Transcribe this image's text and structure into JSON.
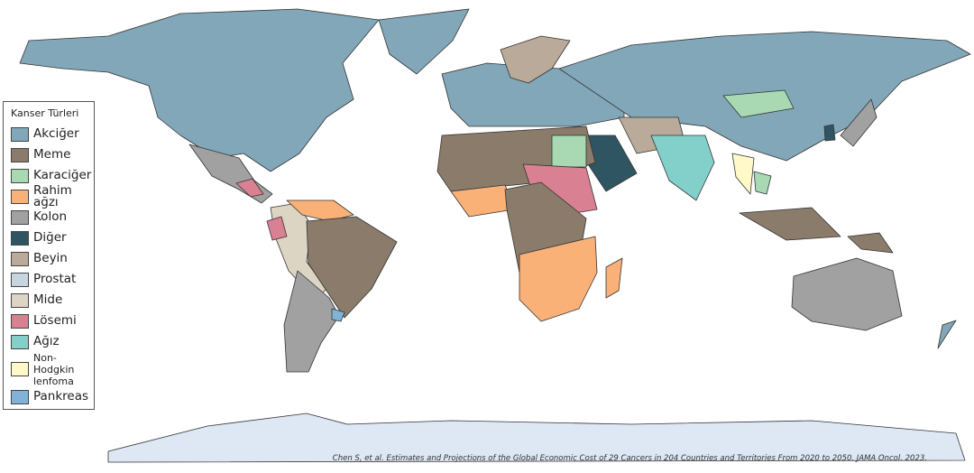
{
  "legend": {
    "title": "Kanser Türleri",
    "items": [
      {
        "label": "Akciğer",
        "color": "#81a7b9"
      },
      {
        "label": "Meme",
        "color": "#8a7b6a"
      },
      {
        "label": "Karaciğer",
        "color": "#a8d9b2"
      },
      {
        "label": "Rahim ağzı",
        "color": "#f9b177"
      },
      {
        "label": "Kolon",
        "color": "#a1a1a1"
      },
      {
        "label": "Diğer",
        "color": "#2f5563"
      },
      {
        "label": "Beyin",
        "color": "#b9aa99"
      },
      {
        "label": "Prostat",
        "color": "#c6d6e1"
      },
      {
        "label": "Mide",
        "color": "#ddd5c4"
      },
      {
        "label": "Lösemi",
        "color": "#d98192"
      },
      {
        "label": "Ağız",
        "color": "#82d0c9"
      },
      {
        "label": "Non-Hodgkin lenfoma",
        "color": "#fff8c9"
      },
      {
        "label": "Pankreas",
        "color": "#80b3d7"
      }
    ]
  },
  "citation": "Chen S, et al. Estimates and Projections of the Global Economic Cost of 29 Cancers in 204 Countries and Territories From 2020 to 2050. JAMA Oncol. 2023."
}
